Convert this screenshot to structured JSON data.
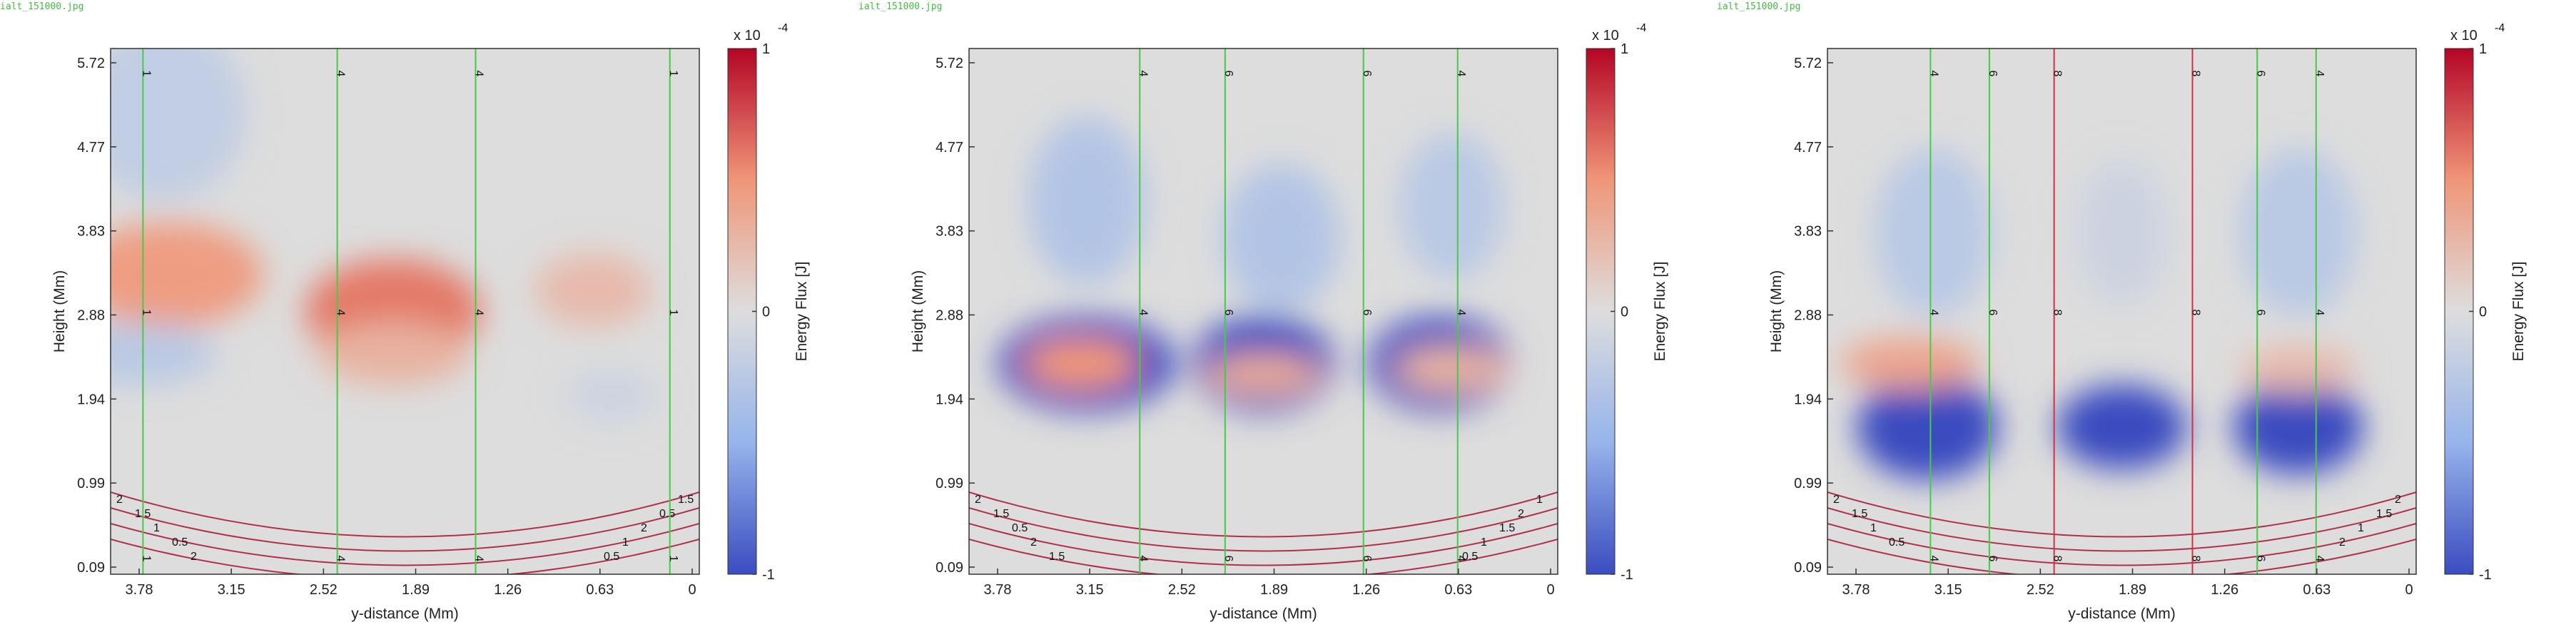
{
  "chart_data": [
    {
      "type": "heatmap",
      "filename": "ialt_151000.jpg",
      "xlabel": "y-distance (Mm)",
      "ylabel": "Height (Mm)",
      "xticks": [
        "3.78",
        "3.15",
        "2.52",
        "1.89",
        "1.26",
        "0.63",
        "0"
      ],
      "yticks": [
        "5.72",
        "4.77",
        "3.83",
        "2.88",
        "1.94",
        "0.99",
        "0.09"
      ],
      "colorbar": {
        "label": "Energy Flux [J]",
        "multiplier": "x 10",
        "exponent": "-4",
        "ticks": [
          "1",
          "0",
          "-1"
        ]
      },
      "field_lines": [
        {
          "x": 0.055,
          "label": "1",
          "color": "#44cc44"
        },
        {
          "x": 0.385,
          "label": "4",
          "color": "#44cc44"
        },
        {
          "x": 0.62,
          "label": "4",
          "color": "#44cc44"
        },
        {
          "x": 0.95,
          "label": "1",
          "color": "#44cc44"
        }
      ],
      "blobs": [
        {
          "cx": 0.1,
          "cy": 0.43,
          "rx": 0.16,
          "ry": 0.1,
          "value": 0.45
        },
        {
          "cx": 0.48,
          "cy": 0.5,
          "rx": 0.15,
          "ry": 0.1,
          "value": 0.6
        },
        {
          "cx": 0.48,
          "cy": 0.58,
          "rx": 0.13,
          "ry": 0.06,
          "value": 0.3
        },
        {
          "cx": 0.82,
          "cy": 0.46,
          "rx": 0.1,
          "ry": 0.07,
          "value": 0.25
        },
        {
          "cx": 0.05,
          "cy": 0.58,
          "rx": 0.13,
          "ry": 0.06,
          "value": -0.25
        },
        {
          "cx": 0.09,
          "cy": 0.12,
          "rx": 0.14,
          "ry": 0.17,
          "value": -0.2
        },
        {
          "cx": 0.85,
          "cy": 0.66,
          "rx": 0.08,
          "ry": 0.05,
          "value": -0.12
        }
      ],
      "contour_labels": [
        "2",
        "1.5",
        "1",
        "0.5",
        "2",
        "1.5",
        "0.5",
        "2",
        "1",
        "0.5"
      ]
    },
    {
      "type": "heatmap",
      "filename": "ialt_151000.jpg",
      "xlabel": "y-distance (Mm)",
      "ylabel": "Height (Mm)",
      "xticks": [
        "3.78",
        "3.15",
        "2.52",
        "1.89",
        "1.26",
        "0.63",
        "0"
      ],
      "yticks": [
        "5.72",
        "4.77",
        "3.83",
        "2.88",
        "1.94",
        "0.99",
        "0.09"
      ],
      "colorbar": {
        "label": "Energy Flux [J]",
        "multiplier": "x 10",
        "exponent": "-4",
        "ticks": [
          "1",
          "0",
          "-1"
        ]
      },
      "field_lines": [
        {
          "x": 0.29,
          "label": "4",
          "color": "#44cc44"
        },
        {
          "x": 0.435,
          "label": "6",
          "color": "#44cc44"
        },
        {
          "x": 0.67,
          "label": "6",
          "color": "#44cc44"
        },
        {
          "x": 0.83,
          "label": "4",
          "color": "#44cc44"
        }
      ],
      "blobs": [
        {
          "cx": 0.2,
          "cy": 0.6,
          "rx": 0.15,
          "ry": 0.09,
          "value": -1.0
        },
        {
          "cx": 0.5,
          "cy": 0.6,
          "rx": 0.12,
          "ry": 0.09,
          "value": -1.0
        },
        {
          "cx": 0.8,
          "cy": 0.6,
          "rx": 0.12,
          "ry": 0.09,
          "value": -1.0
        },
        {
          "cx": 0.2,
          "cy": 0.29,
          "rx": 0.1,
          "ry": 0.16,
          "value": -0.3
        },
        {
          "cx": 0.53,
          "cy": 0.36,
          "rx": 0.1,
          "ry": 0.14,
          "value": -0.3
        },
        {
          "cx": 0.82,
          "cy": 0.3,
          "rx": 0.09,
          "ry": 0.14,
          "value": -0.25
        },
        {
          "cx": 0.19,
          "cy": 0.6,
          "rx": 0.1,
          "ry": 0.05,
          "value": 0.5
        },
        {
          "cx": 0.5,
          "cy": 0.62,
          "rx": 0.1,
          "ry": 0.04,
          "value": 0.35
        },
        {
          "cx": 0.82,
          "cy": 0.61,
          "rx": 0.1,
          "ry": 0.045,
          "value": 0.3
        }
      ],
      "contour_labels": [
        "2",
        "1.5",
        "0.5",
        "2",
        "1.5",
        "1",
        "2",
        "1.5",
        "1",
        "0.5"
      ]
    },
    {
      "type": "heatmap",
      "filename": "ialt_151000.jpg",
      "xlabel": "y-distance (Mm)",
      "ylabel": "Height (Mm)",
      "xticks": [
        "3.78",
        "3.15",
        "2.52",
        "1.89",
        "1.26",
        "0.63",
        "0"
      ],
      "yticks": [
        "5.72",
        "4.77",
        "3.83",
        "2.88",
        "1.94",
        "0.99",
        "0.09"
      ],
      "colorbar": {
        "label": "Energy Flux [J]",
        "multiplier": "x 10",
        "exponent": "-4",
        "ticks": [
          "1",
          "0",
          "-1"
        ]
      },
      "field_lines": [
        {
          "x": 0.175,
          "label": "4",
          "color": "#44cc44"
        },
        {
          "x": 0.275,
          "label": "6",
          "color": "#44cc44"
        },
        {
          "x": 0.385,
          "label": "8",
          "color": "#cc3344"
        },
        {
          "x": 0.62,
          "label": "8",
          "color": "#cc3344"
        },
        {
          "x": 0.73,
          "label": "6",
          "color": "#44cc44"
        },
        {
          "x": 0.83,
          "label": "4",
          "color": "#44cc44"
        }
      ],
      "blobs": [
        {
          "cx": 0.17,
          "cy": 0.72,
          "rx": 0.12,
          "ry": 0.1,
          "value": -1.0
        },
        {
          "cx": 0.5,
          "cy": 0.72,
          "rx": 0.11,
          "ry": 0.08,
          "value": -1.0
        },
        {
          "cx": 0.8,
          "cy": 0.72,
          "rx": 0.11,
          "ry": 0.09,
          "value": -1.0
        },
        {
          "cx": 0.18,
          "cy": 0.35,
          "rx": 0.1,
          "ry": 0.16,
          "value": -0.25
        },
        {
          "cx": 0.5,
          "cy": 0.35,
          "rx": 0.08,
          "ry": 0.14,
          "value": -0.12
        },
        {
          "cx": 0.8,
          "cy": 0.35,
          "rx": 0.1,
          "ry": 0.16,
          "value": -0.25
        },
        {
          "cx": 0.14,
          "cy": 0.6,
          "rx": 0.12,
          "ry": 0.05,
          "value": 0.4
        },
        {
          "cx": 0.8,
          "cy": 0.61,
          "rx": 0.1,
          "ry": 0.045,
          "value": 0.25
        }
      ],
      "contour_labels": [
        "2",
        "1.5",
        "1",
        "0.5",
        "2",
        "1.5",
        "1",
        "2"
      ]
    }
  ]
}
